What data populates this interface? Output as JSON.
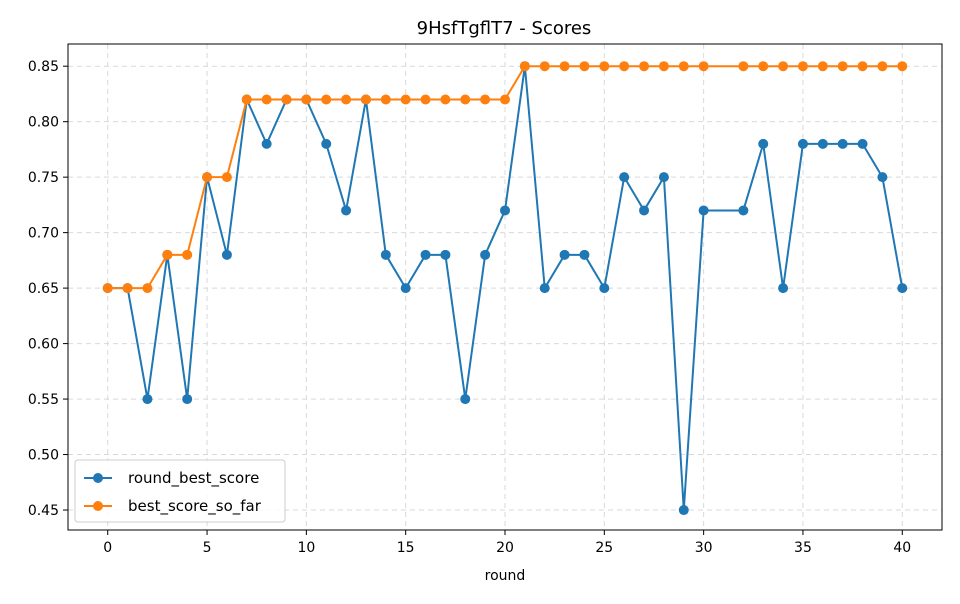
{
  "chart_data": {
    "type": "line",
    "title": "9HsfTgflT7 - Scores",
    "xlabel": "round",
    "ylabel": "",
    "xlim": [
      -2,
      42
    ],
    "ylim": [
      0.432,
      0.87
    ],
    "xticks": [
      0,
      5,
      10,
      15,
      20,
      25,
      30,
      35,
      40
    ],
    "yticks": [
      0.45,
      0.5,
      0.55,
      0.6,
      0.65,
      0.7,
      0.75,
      0.8,
      0.85
    ],
    "xtick_labels": [
      "0",
      "5",
      "10",
      "15",
      "20",
      "25",
      "30",
      "35",
      "40"
    ],
    "ytick_labels": [
      "0.45",
      "0.50",
      "0.55",
      "0.60",
      "0.65",
      "0.70",
      "0.75",
      "0.80",
      "0.85"
    ],
    "grid": true,
    "legend_position": "lower-left",
    "x": [
      0,
      1,
      2,
      3,
      4,
      5,
      6,
      7,
      8,
      9,
      10,
      11,
      12,
      13,
      14,
      15,
      16,
      17,
      18,
      19,
      20,
      21,
      22,
      23,
      24,
      25,
      26,
      27,
      28,
      29,
      30,
      32,
      33,
      34,
      35,
      36,
      37,
      38,
      39,
      40
    ],
    "series": [
      {
        "name": "round_best_score",
        "color": "#1f77b4",
        "values": [
          0.65,
          0.65,
          0.55,
          0.68,
          0.55,
          0.75,
          0.68,
          0.82,
          0.78,
          0.82,
          0.82,
          0.78,
          0.72,
          0.82,
          0.68,
          0.65,
          0.68,
          0.68,
          0.55,
          0.68,
          0.72,
          0.85,
          0.65,
          0.68,
          0.68,
          0.65,
          0.75,
          0.72,
          0.75,
          0.45,
          0.72,
          0.72,
          0.78,
          0.65,
          0.78,
          0.78,
          0.78,
          0.78,
          0.75,
          0.65
        ]
      },
      {
        "name": "best_score_so_far",
        "color": "#ff7f0e",
        "values": [
          0.65,
          0.65,
          0.65,
          0.68,
          0.68,
          0.75,
          0.75,
          0.82,
          0.82,
          0.82,
          0.82,
          0.82,
          0.82,
          0.82,
          0.82,
          0.82,
          0.82,
          0.82,
          0.82,
          0.82,
          0.82,
          0.85,
          0.85,
          0.85,
          0.85,
          0.85,
          0.85,
          0.85,
          0.85,
          0.85,
          0.85,
          0.85,
          0.85,
          0.85,
          0.85,
          0.85,
          0.85,
          0.85,
          0.85,
          0.85
        ]
      }
    ]
  }
}
